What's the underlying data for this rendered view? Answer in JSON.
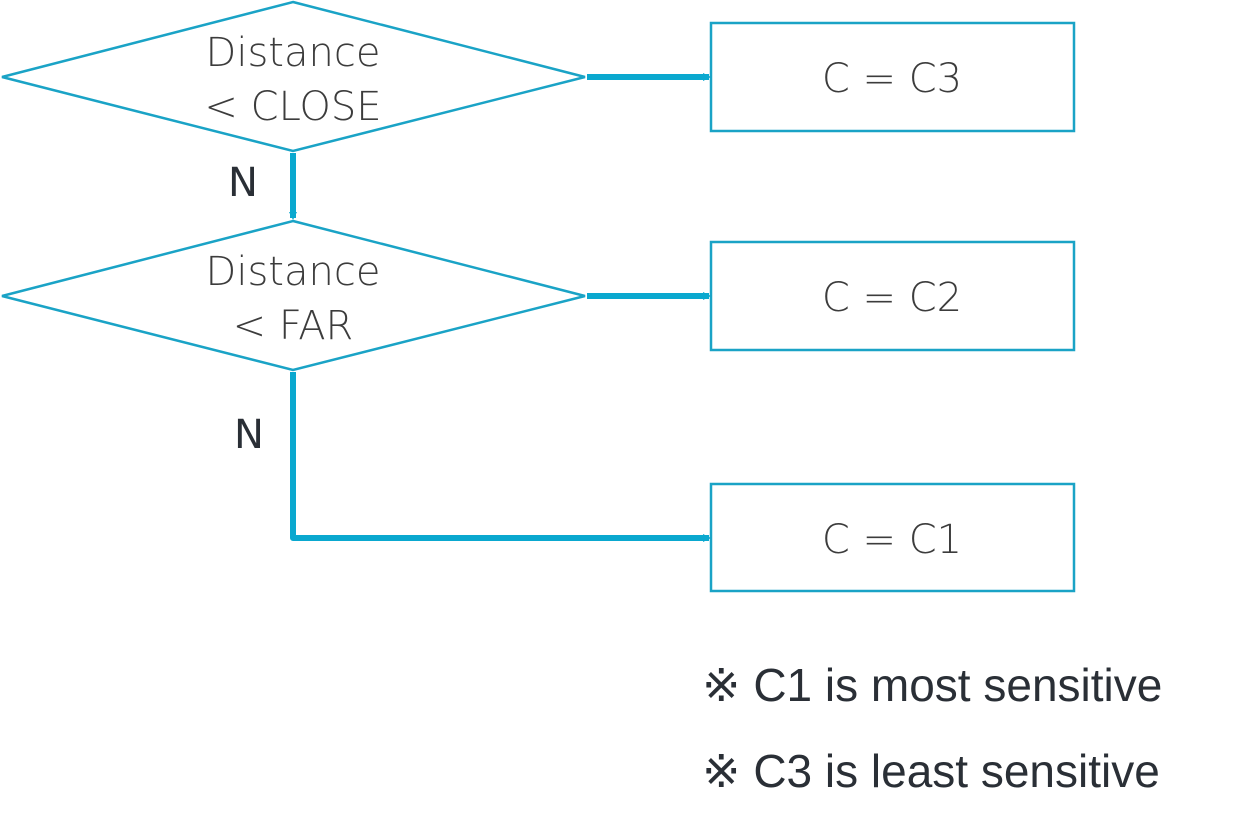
{
  "colors": {
    "shape_stroke": "#1aa3c6",
    "arrow": "#0aa8cf",
    "text": "#3c3c3c",
    "label_text": "#2a2f36",
    "background": "#ffffff"
  },
  "decisions": [
    {
      "line1": "Distance",
      "line2": "< CLOSE"
    },
    {
      "line1": "Distance",
      "line2": "< FAR"
    }
  ],
  "outcomes": [
    {
      "label": "C = C3"
    },
    {
      "label": "C = C2"
    },
    {
      "label": "C = C1"
    }
  ],
  "edge_labels": {
    "no_1": "N",
    "no_2": "N"
  },
  "notes": [
    "※ C1 is most sensitive",
    "※ C3 is least sensitive"
  ]
}
